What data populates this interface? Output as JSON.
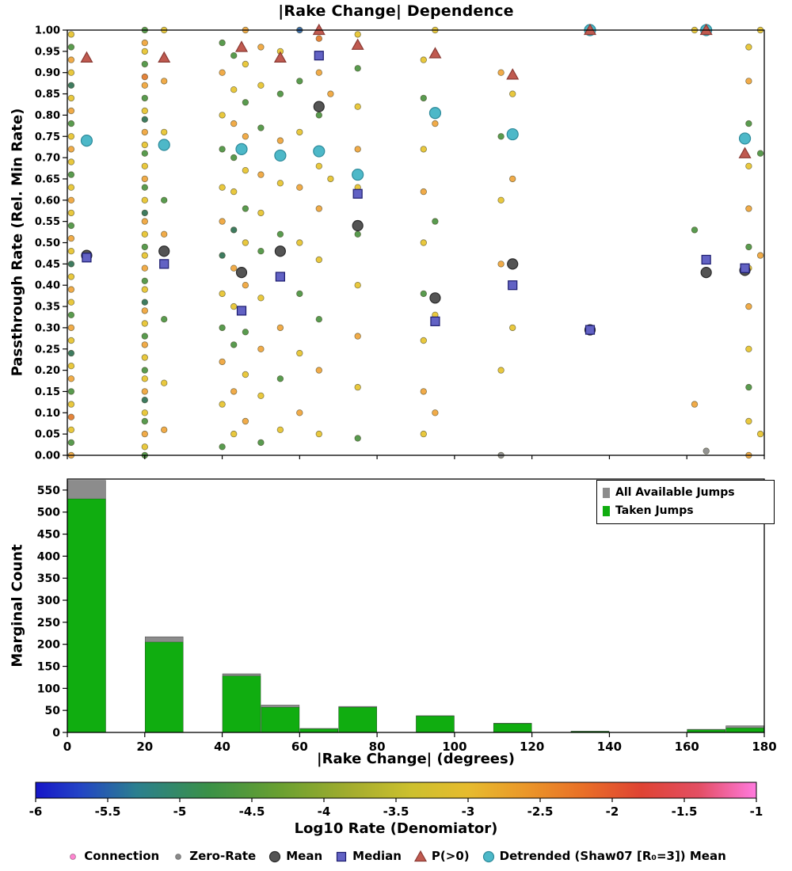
{
  "title": "|Rake Change| Dependence",
  "colors": {
    "palette": [
      "#e7c32e",
      "#f0a43a",
      "#e2782a",
      "#a0aa30",
      "#4b9240",
      "#2e7053",
      "#8a8a8a",
      "#2b5f9e"
    ],
    "mean": "#545454",
    "mean_edge": "#2a2a2a",
    "median": "#6262c4",
    "median_edge": "#1c1c6e",
    "p_gt0": "#c05a50",
    "p_gt0_edge": "#8a3a34",
    "detrended": "#4db8c8",
    "detrended_edge": "#2d8a9a",
    "connection": "#ff85d0",
    "zero_rate": "#8a8a8a",
    "taken": "#10ad10",
    "available": "#8c8c8c",
    "axis": "#000000"
  },
  "chart_data": [
    {
      "type": "scatter",
      "title": "|Rake Change| Dependence",
      "ylabel": "Passthrough Rate (Rel. Min Rate)",
      "xlim": [
        0,
        180
      ],
      "ylim": [
        0,
        1
      ],
      "yticks": [
        "0.00",
        "0.05",
        "0.10",
        "0.15",
        "0.20",
        "0.25",
        "0.30",
        "0.35",
        "0.40",
        "0.45",
        "0.50",
        "0.55",
        "0.60",
        "0.65",
        "0.70",
        "0.75",
        "0.80",
        "0.85",
        "0.90",
        "0.95",
        "1.00"
      ],
      "points": [
        [
          1,
          0.0,
          1
        ],
        [
          1,
          0.03,
          4
        ],
        [
          1,
          0.06,
          0
        ],
        [
          1,
          0.09,
          2
        ],
        [
          1,
          0.12,
          0
        ],
        [
          1,
          0.15,
          4
        ],
        [
          1,
          0.18,
          1
        ],
        [
          1,
          0.21,
          0
        ],
        [
          1,
          0.24,
          5
        ],
        [
          1,
          0.27,
          0
        ],
        [
          1,
          0.3,
          1
        ],
        [
          1,
          0.33,
          4
        ],
        [
          1,
          0.36,
          0
        ],
        [
          1,
          0.39,
          1
        ],
        [
          1,
          0.42,
          0
        ],
        [
          1,
          0.45,
          5
        ],
        [
          1,
          0.48,
          0
        ],
        [
          1,
          0.51,
          1
        ],
        [
          1,
          0.54,
          4
        ],
        [
          1,
          0.57,
          0
        ],
        [
          1,
          0.6,
          1
        ],
        [
          1,
          0.63,
          0
        ],
        [
          1,
          0.66,
          4
        ],
        [
          1,
          0.69,
          0
        ],
        [
          1,
          0.72,
          1
        ],
        [
          1,
          0.75,
          0
        ],
        [
          1,
          0.78,
          4
        ],
        [
          1,
          0.81,
          1
        ],
        [
          1,
          0.84,
          0
        ],
        [
          1,
          0.87,
          5
        ],
        [
          1,
          0.9,
          0
        ],
        [
          1,
          0.93,
          1
        ],
        [
          1,
          0.96,
          4
        ],
        [
          1,
          0.99,
          0
        ],
        [
          20,
          0.0,
          4
        ],
        [
          20,
          0.02,
          0
        ],
        [
          20,
          0.05,
          1
        ],
        [
          20,
          0.08,
          4
        ],
        [
          20,
          0.1,
          0
        ],
        [
          20,
          0.13,
          5
        ],
        [
          20,
          0.15,
          1
        ],
        [
          20,
          0.18,
          0
        ],
        [
          20,
          0.2,
          4
        ],
        [
          20,
          0.23,
          0
        ],
        [
          20,
          0.26,
          1
        ],
        [
          20,
          0.28,
          4
        ],
        [
          20,
          0.31,
          0
        ],
        [
          20,
          0.34,
          1
        ],
        [
          20,
          0.36,
          5
        ],
        [
          20,
          0.39,
          0
        ],
        [
          20,
          0.41,
          4
        ],
        [
          20,
          0.44,
          1
        ],
        [
          20,
          0.47,
          0
        ],
        [
          20,
          0.49,
          4
        ],
        [
          20,
          0.52,
          0
        ],
        [
          20,
          0.55,
          1
        ],
        [
          20,
          0.57,
          5
        ],
        [
          20,
          0.6,
          0
        ],
        [
          20,
          0.63,
          4
        ],
        [
          20,
          0.65,
          1
        ],
        [
          20,
          0.68,
          0
        ],
        [
          20,
          0.71,
          4
        ],
        [
          20,
          0.73,
          0
        ],
        [
          20,
          0.76,
          1
        ],
        [
          20,
          0.79,
          5
        ],
        [
          20,
          0.81,
          0
        ],
        [
          20,
          0.84,
          4
        ],
        [
          20,
          0.87,
          1
        ],
        [
          20,
          0.89,
          2
        ],
        [
          20,
          0.92,
          4
        ],
        [
          20,
          0.95,
          0
        ],
        [
          20,
          0.97,
          1
        ],
        [
          20,
          1.0,
          4
        ],
        [
          25,
          0.06,
          1
        ],
        [
          25,
          0.17,
          0
        ],
        [
          25,
          0.32,
          4
        ],
        [
          25,
          0.45,
          0
        ],
        [
          25,
          0.52,
          1
        ],
        [
          25,
          0.6,
          4
        ],
        [
          25,
          0.76,
          0
        ],
        [
          25,
          0.88,
          1
        ],
        [
          25,
          1.0,
          0
        ],
        [
          40,
          0.02,
          4
        ],
        [
          40,
          0.12,
          0
        ],
        [
          40,
          0.22,
          1
        ],
        [
          40,
          0.3,
          4
        ],
        [
          40,
          0.38,
          0
        ],
        [
          40,
          0.47,
          5
        ],
        [
          40,
          0.55,
          1
        ],
        [
          40,
          0.63,
          0
        ],
        [
          40,
          0.72,
          4
        ],
        [
          40,
          0.8,
          0
        ],
        [
          40,
          0.9,
          1
        ],
        [
          40,
          0.97,
          4
        ],
        [
          43,
          0.05,
          0
        ],
        [
          43,
          0.15,
          1
        ],
        [
          43,
          0.26,
          4
        ],
        [
          43,
          0.35,
          0
        ],
        [
          43,
          0.44,
          1
        ],
        [
          43,
          0.53,
          5
        ],
        [
          43,
          0.62,
          0
        ],
        [
          43,
          0.7,
          4
        ],
        [
          43,
          0.78,
          1
        ],
        [
          43,
          0.86,
          0
        ],
        [
          43,
          0.94,
          4
        ],
        [
          46,
          0.08,
          1
        ],
        [
          46,
          0.19,
          0
        ],
        [
          46,
          0.29,
          4
        ],
        [
          46,
          0.4,
          1
        ],
        [
          46,
          0.5,
          0
        ],
        [
          46,
          0.58,
          4
        ],
        [
          46,
          0.67,
          0
        ],
        [
          46,
          0.75,
          1
        ],
        [
          46,
          0.83,
          4
        ],
        [
          46,
          0.92,
          0
        ],
        [
          46,
          1.0,
          1
        ],
        [
          50,
          0.03,
          4
        ],
        [
          50,
          0.14,
          0
        ],
        [
          50,
          0.25,
          1
        ],
        [
          50,
          0.37,
          0
        ],
        [
          50,
          0.48,
          4
        ],
        [
          50,
          0.57,
          0
        ],
        [
          50,
          0.66,
          1
        ],
        [
          50,
          0.77,
          4
        ],
        [
          50,
          0.87,
          0
        ],
        [
          50,
          0.96,
          1
        ],
        [
          55,
          0.06,
          0
        ],
        [
          55,
          0.18,
          4
        ],
        [
          55,
          0.3,
          1
        ],
        [
          55,
          0.42,
          0
        ],
        [
          55,
          0.52,
          4
        ],
        [
          55,
          0.64,
          0
        ],
        [
          55,
          0.74,
          1
        ],
        [
          55,
          0.85,
          4
        ],
        [
          55,
          0.95,
          0
        ],
        [
          60,
          0.1,
          1
        ],
        [
          60,
          0.24,
          0
        ],
        [
          60,
          0.38,
          4
        ],
        [
          60,
          0.5,
          0
        ],
        [
          60,
          0.63,
          1
        ],
        [
          60,
          0.76,
          0
        ],
        [
          60,
          0.88,
          4
        ],
        [
          60,
          1.0,
          7
        ],
        [
          65,
          0.05,
          0
        ],
        [
          65,
          0.2,
          1
        ],
        [
          65,
          0.32,
          4
        ],
        [
          65,
          0.46,
          0
        ],
        [
          65,
          0.58,
          1
        ],
        [
          65,
          0.68,
          0
        ],
        [
          65,
          0.8,
          4
        ],
        [
          65,
          0.9,
          1
        ],
        [
          65,
          0.98,
          2
        ],
        [
          68,
          0.65,
          0
        ],
        [
          68,
          0.85,
          1
        ],
        [
          75,
          0.04,
          4
        ],
        [
          75,
          0.16,
          0
        ],
        [
          75,
          0.28,
          1
        ],
        [
          75,
          0.4,
          0
        ],
        [
          75,
          0.52,
          4
        ],
        [
          75,
          0.63,
          0
        ],
        [
          75,
          0.72,
          1
        ],
        [
          75,
          0.82,
          0
        ],
        [
          75,
          0.91,
          4
        ],
        [
          75,
          0.99,
          0
        ],
        [
          92,
          0.05,
          0
        ],
        [
          92,
          0.15,
          1
        ],
        [
          92,
          0.27,
          0
        ],
        [
          92,
          0.38,
          4
        ],
        [
          92,
          0.5,
          0
        ],
        [
          92,
          0.62,
          1
        ],
        [
          92,
          0.72,
          0
        ],
        [
          92,
          0.84,
          4
        ],
        [
          92,
          0.93,
          0
        ],
        [
          95,
          0.1,
          1
        ],
        [
          95,
          0.33,
          0
        ],
        [
          95,
          0.55,
          4
        ],
        [
          95,
          0.78,
          1
        ],
        [
          95,
          1.0,
          0
        ],
        [
          112,
          0.0,
          6
        ],
        [
          112,
          0.2,
          0
        ],
        [
          112,
          0.45,
          1
        ],
        [
          112,
          0.6,
          0
        ],
        [
          112,
          0.75,
          4
        ],
        [
          112,
          0.9,
          1
        ],
        [
          115,
          0.3,
          0
        ],
        [
          115,
          0.65,
          1
        ],
        [
          115,
          0.85,
          0
        ],
        [
          135,
          0.3,
          5
        ],
        [
          135,
          1.0,
          4
        ],
        [
          162,
          0.12,
          1
        ],
        [
          162,
          0.53,
          4
        ],
        [
          162,
          1.0,
          0
        ],
        [
          165,
          0.01,
          6
        ],
        [
          176,
          0.0,
          1
        ],
        [
          176,
          0.08,
          0
        ],
        [
          176,
          0.16,
          4
        ],
        [
          176,
          0.25,
          0
        ],
        [
          176,
          0.35,
          1
        ],
        [
          176,
          0.44,
          0
        ],
        [
          176,
          0.49,
          4
        ],
        [
          176,
          0.58,
          1
        ],
        [
          176,
          0.68,
          0
        ],
        [
          176,
          0.78,
          4
        ],
        [
          176,
          0.88,
          1
        ],
        [
          176,
          0.96,
          0
        ],
        [
          179,
          0.05,
          0
        ],
        [
          179,
          0.47,
          1
        ],
        [
          179,
          0.71,
          4
        ],
        [
          179,
          1.0,
          0
        ]
      ],
      "mean": {
        "x": [
          5,
          25,
          45,
          55,
          65,
          75,
          95,
          115,
          135,
          165,
          175
        ],
        "y": [
          0.47,
          0.48,
          0.43,
          0.48,
          0.82,
          0.54,
          0.37,
          0.45,
          0.295,
          0.43,
          0.435
        ]
      },
      "median": {
        "x": [
          5,
          25,
          45,
          55,
          65,
          75,
          95,
          115,
          135,
          165,
          175
        ],
        "y": [
          0.465,
          0.45,
          0.34,
          0.42,
          0.94,
          0.615,
          0.315,
          0.4,
          0.295,
          0.46,
          0.44
        ]
      },
      "p_gt0": {
        "x": [
          5,
          25,
          45,
          55,
          65,
          75,
          95,
          115,
          135,
          165,
          175
        ],
        "y": [
          0.935,
          0.935,
          0.96,
          0.935,
          1.0,
          0.965,
          0.945,
          0.895,
          1.0,
          1.0,
          0.71
        ]
      },
      "detrended": {
        "x": [
          5,
          25,
          45,
          55,
          65,
          75,
          95,
          115,
          135,
          165,
          175
        ],
        "y": [
          0.74,
          0.73,
          0.72,
          0.705,
          0.715,
          0.66,
          0.805,
          0.755,
          1.0,
          1.0,
          0.745
        ]
      }
    },
    {
      "type": "bar",
      "xlabel": "|Rake Change| (degrees)",
      "ylabel": "Marginal Count",
      "xlim": [
        0,
        180
      ],
      "ylim": [
        0,
        575
      ],
      "xticks": [
        "0",
        "20",
        "40",
        "60",
        "80",
        "100",
        "120",
        "140",
        "160",
        "180"
      ],
      "yticks": [
        "0",
        "50",
        "100",
        "150",
        "200",
        "250",
        "300",
        "350",
        "400",
        "450",
        "500",
        "550"
      ],
      "bars": [
        {
          "x0": 0,
          "x1": 10,
          "taken": 530,
          "available": 572
        },
        {
          "x0": 20,
          "x1": 30,
          "taken": 205,
          "available": 217
        },
        {
          "x0": 40,
          "x1": 50,
          "taken": 128,
          "available": 133
        },
        {
          "x0": 50,
          "x1": 60,
          "taken": 57,
          "available": 62
        },
        {
          "x0": 60,
          "x1": 70,
          "taken": 8,
          "available": 9
        },
        {
          "x0": 70,
          "x1": 80,
          "taken": 57,
          "available": 59
        },
        {
          "x0": 90,
          "x1": 100,
          "taken": 37,
          "available": 38
        },
        {
          "x0": 110,
          "x1": 120,
          "taken": 20,
          "available": 21
        },
        {
          "x0": 130,
          "x1": 140,
          "taken": 2,
          "available": 3
        },
        {
          "x0": 160,
          "x1": 170,
          "taken": 6,
          "available": 7
        },
        {
          "x0": 170,
          "x1": 180,
          "taken": 10,
          "available": 15
        }
      ],
      "legend": [
        {
          "label": "All Available Jumps",
          "color_key": "available"
        },
        {
          "label": "Taken Jumps",
          "color_key": "taken"
        }
      ]
    }
  ],
  "colorbar": {
    "label": "Log10 Rate (Denomiator)",
    "ticks": [
      "-6",
      "-5.5",
      "-5",
      "-4.5",
      "-4",
      "-3.5",
      "-3",
      "-2.5",
      "-2",
      "-1.5",
      "-1"
    ],
    "stops": [
      [
        "0%",
        "#1616c8"
      ],
      [
        "6%",
        "#2343c6"
      ],
      [
        "14%",
        "#2b7f8f"
      ],
      [
        "24%",
        "#3a9147"
      ],
      [
        "34%",
        "#6aa030"
      ],
      [
        "44%",
        "#a5ad2e"
      ],
      [
        "52%",
        "#ccc02e"
      ],
      [
        "60%",
        "#e6bb2e"
      ],
      [
        "68%",
        "#eb9729"
      ],
      [
        "76%",
        "#e96f27"
      ],
      [
        "84%",
        "#df4333"
      ],
      [
        "92%",
        "#e34e63"
      ],
      [
        "100%",
        "#ff7ade"
      ]
    ]
  },
  "legend_bottom": [
    {
      "label": "Connection",
      "marker": "dot-small",
      "color_key": "connection"
    },
    {
      "label": "Zero-Rate",
      "marker": "dot-small",
      "color_key": "zero_rate"
    },
    {
      "label": "Mean",
      "marker": "circle",
      "color_key": "mean"
    },
    {
      "label": "Median",
      "marker": "square",
      "color_key": "median"
    },
    {
      "label": "P(>0)",
      "marker": "triangle",
      "color_key": "p_gt0"
    },
    {
      "label": "Detrended (Shaw07 [R₀=3]) Mean",
      "marker": "circle",
      "color_key": "detrended"
    }
  ]
}
